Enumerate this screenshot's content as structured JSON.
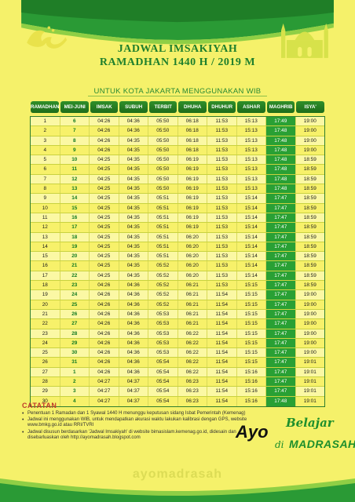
{
  "header": {
    "title_line1": "JADWAL IMSAKIYAH",
    "title_line2": "RAMADHAN 1440 H / 2019 M",
    "subtitle": "UNTUK KOTA JAKARTA MENGGUNAKAN WIB"
  },
  "table": {
    "columns": [
      "RAMADHAN",
      "MEI-JUNI",
      "IMSAK",
      "SUBUH",
      "TERBIT",
      "DHUHA",
      "DHUHUR",
      "ASHAR",
      "MAGHRIB",
      "ISYA'"
    ],
    "rows": [
      [
        "1",
        "6",
        "04:26",
        "04:36",
        "05:50",
        "06:18",
        "11:53",
        "15:13",
        "17:49",
        "19:00"
      ],
      [
        "2",
        "7",
        "04:26",
        "04:36",
        "05:50",
        "06:18",
        "11:53",
        "15:13",
        "17:48",
        "19:00"
      ],
      [
        "3",
        "8",
        "04:26",
        "04:35",
        "05:50",
        "06:18",
        "11:53",
        "15:13",
        "17:48",
        "19:00"
      ],
      [
        "4",
        "9",
        "04:26",
        "04:35",
        "05:50",
        "06:18",
        "11:53",
        "15:13",
        "17:48",
        "19:00"
      ],
      [
        "5",
        "10",
        "04:25",
        "04:35",
        "05:50",
        "06:19",
        "11:53",
        "15:13",
        "17:48",
        "18:59"
      ],
      [
        "6",
        "11",
        "04:25",
        "04:35",
        "05:50",
        "06:19",
        "11:53",
        "15:13",
        "17:48",
        "18:59"
      ],
      [
        "7",
        "12",
        "04:25",
        "04:35",
        "05:50",
        "06:19",
        "11:53",
        "15:13",
        "17:48",
        "18:59"
      ],
      [
        "8",
        "13",
        "04:25",
        "04:35",
        "05:50",
        "06:19",
        "11:53",
        "15:13",
        "17:48",
        "18:59"
      ],
      [
        "9",
        "14",
        "04:25",
        "04:35",
        "05:51",
        "06:19",
        "11:53",
        "15:14",
        "17:47",
        "18:59"
      ],
      [
        "10",
        "15",
        "04:25",
        "04:35",
        "05:51",
        "06:19",
        "11:53",
        "15:14",
        "17:47",
        "18:59"
      ],
      [
        "11",
        "16",
        "04:25",
        "04:35",
        "05:51",
        "06:19",
        "11:53",
        "15:14",
        "17:47",
        "18:59"
      ],
      [
        "12",
        "17",
        "04:25",
        "04:35",
        "05:51",
        "06:19",
        "11:53",
        "15:14",
        "17:47",
        "18:59"
      ],
      [
        "13",
        "18",
        "04:25",
        "04:35",
        "05:51",
        "06:20",
        "11:53",
        "15:14",
        "17:47",
        "18:59"
      ],
      [
        "14",
        "19",
        "04:25",
        "04:35",
        "05:51",
        "06:20",
        "11:53",
        "15:14",
        "17:47",
        "18:59"
      ],
      [
        "15",
        "20",
        "04:25",
        "04:35",
        "05:51",
        "06:20",
        "11:53",
        "15:14",
        "17:47",
        "18:59"
      ],
      [
        "16",
        "21",
        "04:25",
        "04:35",
        "05:52",
        "06:20",
        "11:53",
        "15:14",
        "17:47",
        "18:59"
      ],
      [
        "17",
        "22",
        "04:25",
        "04:35",
        "05:52",
        "06:20",
        "11:53",
        "15:14",
        "17:47",
        "18:59"
      ],
      [
        "18",
        "23",
        "04:26",
        "04:36",
        "05:52",
        "06:21",
        "11:53",
        "15:15",
        "17:47",
        "18:59"
      ],
      [
        "19",
        "24",
        "04:26",
        "04:36",
        "05:52",
        "06:21",
        "11:54",
        "15:15",
        "17:47",
        "19:00"
      ],
      [
        "20",
        "25",
        "04:26",
        "04:36",
        "05:52",
        "06:21",
        "11:54",
        "15:15",
        "17:47",
        "19:00"
      ],
      [
        "21",
        "26",
        "04:26",
        "04:36",
        "05:53",
        "06:21",
        "11:54",
        "15:15",
        "17:47",
        "19:00"
      ],
      [
        "22",
        "27",
        "04:26",
        "04:36",
        "05:53",
        "06:21",
        "11:54",
        "15:15",
        "17:47",
        "19:00"
      ],
      [
        "23",
        "28",
        "04:26",
        "04:36",
        "05:53",
        "06:22",
        "11:54",
        "15:15",
        "17:47",
        "19:00"
      ],
      [
        "24",
        "29",
        "04:26",
        "04:36",
        "05:53",
        "06:22",
        "11:54",
        "15:15",
        "17:47",
        "19:00"
      ],
      [
        "25",
        "30",
        "04:26",
        "04:36",
        "05:53",
        "06:22",
        "11:54",
        "15:15",
        "17:47",
        "19:00"
      ],
      [
        "26",
        "31",
        "04:26",
        "04:36",
        "05:54",
        "06:22",
        "11:54",
        "15:15",
        "17:47",
        "19:01"
      ],
      [
        "27",
        "1",
        "04:26",
        "04:36",
        "05:54",
        "06:22",
        "11:54",
        "15:16",
        "17:47",
        "19:01"
      ],
      [
        "28",
        "2",
        "04:27",
        "04:37",
        "05:54",
        "06:23",
        "11:54",
        "15:16",
        "17:47",
        "19:01"
      ],
      [
        "29",
        "3",
        "04:27",
        "04:37",
        "05:54",
        "06:23",
        "11:54",
        "15:16",
        "17:47",
        "19:01"
      ],
      [
        "30",
        "4",
        "04:27",
        "04:37",
        "05:54",
        "06:23",
        "11:54",
        "15:16",
        "17:48",
        "19:01"
      ]
    ]
  },
  "notes": {
    "title": "CATATAN",
    "items": [
      "Penentuan 1 Ramadan dan 1 Syawal 1440 H menunggu keputusan sidang Isbat Pemerintah (Kemenag)",
      "Jadwal ini menggunakan WIB, untuk mendapatkan akurasi waktu lakukan kalibrasi dengan GPS, website www.bmkg.go.id atau RRI/TVRI",
      "Jadwal disusun berdasarkan 'Jadwal Imsakiyah' di website bimasislam.kemenag.go.id, didesain dan disebarluaskan oleh http://ayomadrasah.blogspot.com"
    ]
  },
  "logo": {
    "ayo": "Ayo",
    "belajar": "Belajar",
    "di": "di",
    "madrasah": "MADRASAH"
  },
  "watermark": "ayomadrasah",
  "colors": {
    "green": "#1e7f2c",
    "yellow": "#f5f16a",
    "accent": "#29a034"
  }
}
